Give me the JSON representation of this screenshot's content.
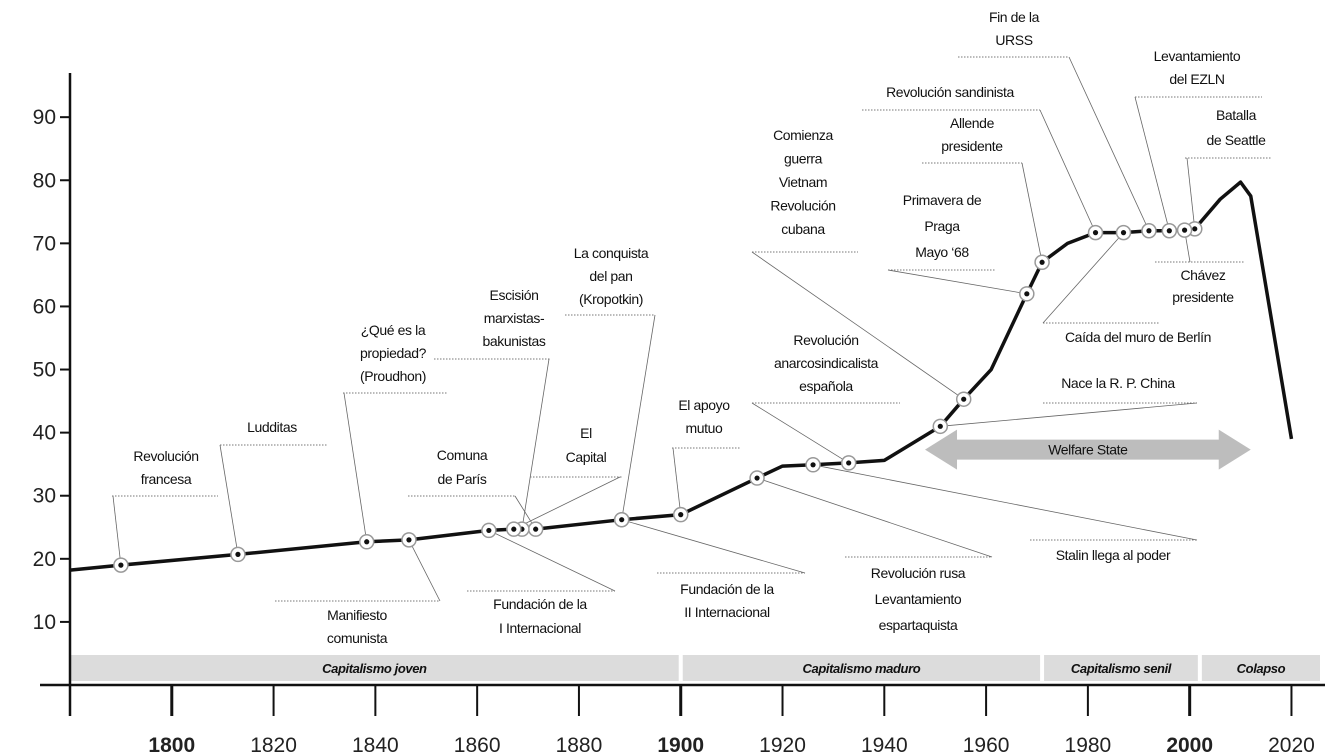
{
  "chart_data": {
    "type": "line",
    "xlim": [
      1780,
      2026
    ],
    "ylim": [
      0,
      97
    ],
    "xticks": [
      1800,
      1820,
      1840,
      1860,
      1880,
      1900,
      1920,
      1940,
      1960,
      1980,
      2000,
      2020
    ],
    "major_xticks": [
      1800,
      1900,
      2000
    ],
    "yticks": [
      10,
      20,
      30,
      40,
      50,
      60,
      70,
      80,
      90
    ],
    "color": "#111111",
    "x": [
      1780,
      1790,
      1813,
      1838.3,
      1846.6,
      1862.3,
      1867.2,
      1868.8,
      1871.5,
      1888.4,
      1900,
      1915,
      1920,
      1926,
      1933,
      1940,
      1951,
      1955.6,
      1961,
      1968,
      1971,
      1976,
      1981.5,
      1987,
      1992,
      1996,
      1999,
      2001,
      2006,
      2010,
      2012,
      2020
    ],
    "values": [
      18.2,
      19,
      20.7,
      22.7,
      23,
      24.5,
      24.7,
      24.7,
      24.7,
      26.2,
      27,
      32.8,
      34.7,
      34.9,
      35.2,
      35.6,
      41,
      45.3,
      50,
      62,
      67,
      70,
      71.7,
      71.7,
      72,
      72,
      72.1,
      72.3,
      77,
      79.7,
      77.5,
      39
    ],
    "annotations": [
      {
        "lines": [
          "Revolución",
          "francesa"
        ],
        "point": 1
      },
      {
        "lines": [
          "Ludditas"
        ],
        "point": 2
      },
      {
        "lines": [
          "¿Qué es la",
          "propiedad?",
          "(Proudhon)"
        ],
        "point": 3
      },
      {
        "lines": [
          "Manifiesto",
          "comunista"
        ],
        "point": 4
      },
      {
        "lines": [
          "Fundación de la",
          "I Internacional"
        ],
        "point": 5
      },
      {
        "lines": [
          "Comuna",
          "de París"
        ],
        "point": 8
      },
      {
        "lines": [
          "Escisión",
          "marxistas-",
          "bakunistas"
        ],
        "point": 7
      },
      {
        "lines": [
          "El",
          "Capital"
        ],
        "point": 6
      },
      {
        "lines": [
          "La conquista",
          "del pan",
          "(Kropotkin)"
        ],
        "point": 9
      },
      {
        "lines": [
          "Fundación de la",
          "II Internacional"
        ],
        "point": 9
      },
      {
        "lines": [
          "El apoyo",
          "mutuo"
        ],
        "point": 10
      },
      {
        "lines": [
          "Revolución rusa",
          "Levantamiento",
          "espartaquista"
        ],
        "point": 11
      },
      {
        "lines": [
          "Stalin llega al poder"
        ],
        "point": 13
      },
      {
        "lines": [
          "Revolución",
          "anarcosindicalista",
          "española"
        ],
        "point": 14
      },
      {
        "lines": [
          "Comienza",
          "guerra",
          "Vietnam",
          "Revolución",
          "cubana"
        ],
        "point": 17
      },
      {
        "lines": [
          "Nace la R. P. China"
        ],
        "point": 16
      },
      {
        "lines": [
          "Primavera de",
          "Praga",
          "Mayo ‘68"
        ],
        "point": 19
      },
      {
        "lines": [
          "Allende",
          "presidente"
        ],
        "point": 20
      },
      {
        "lines": [
          "Revolución sandinista"
        ],
        "point": 22
      },
      {
        "lines": [
          "Fin de la",
          "URSS"
        ],
        "point": 24
      },
      {
        "lines": [
          "Levantamiento",
          "del EZLN"
        ],
        "point": 25
      },
      {
        "lines": [
          "Batalla",
          "de Seattle"
        ],
        "point": 27
      },
      {
        "lines": [
          "Chávez",
          "presidente"
        ],
        "point": 26
      },
      {
        "lines": [
          "Caída del muro de Berlín"
        ],
        "point": 23
      }
    ],
    "band": {
      "label": "Welfare State",
      "start": 1948,
      "end": 2012,
      "y": 37.3
    },
    "eras": [
      {
        "label": "Capitalismo joven",
        "start": 1780,
        "end": 1900
      },
      {
        "label": "Capitalismo maduro",
        "start": 1900,
        "end": 1971
      },
      {
        "label": "Capitalismo senil",
        "start": 1971,
        "end": 2002
      },
      {
        "label": "Colapso",
        "start": 2002,
        "end": 2026
      }
    ]
  }
}
